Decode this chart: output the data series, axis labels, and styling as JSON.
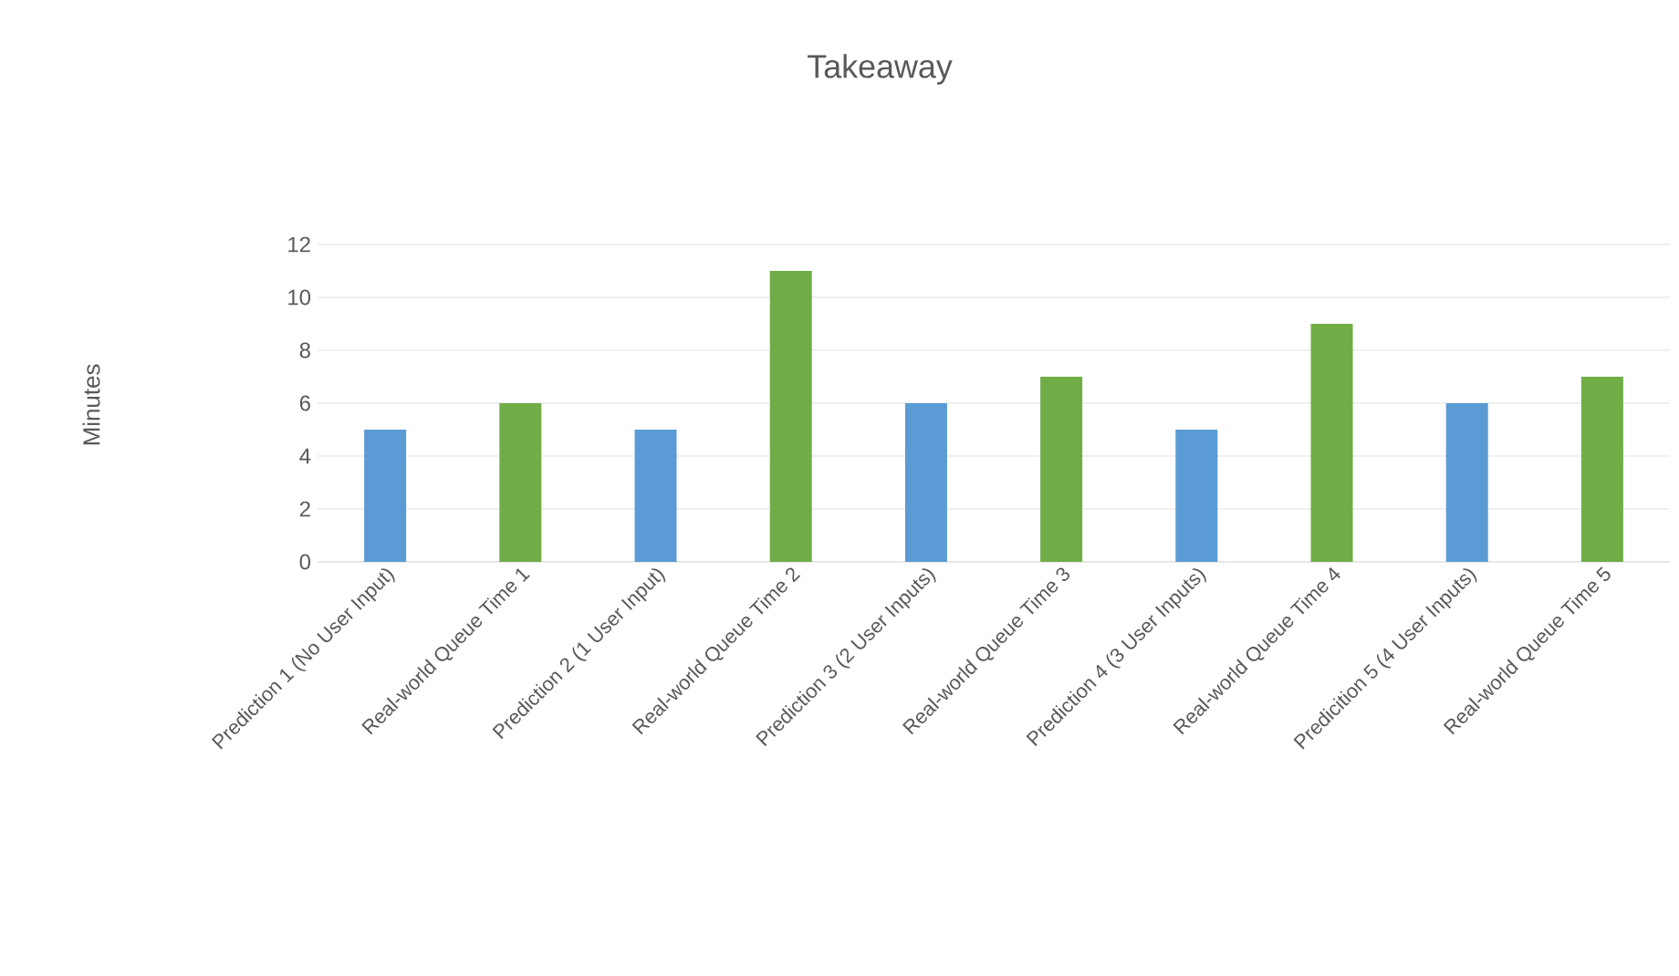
{
  "chart_data": {
    "type": "bar",
    "title": "Takeaway",
    "ylabel": "Minutes",
    "categories": [
      "Prediction 1 (No User Input)",
      "Real-world Queue Time 1",
      "Prediction 2 (1 User Input)",
      "Real-world Queue Time 2",
      "Prediction 3 (2 User Inputs)",
      "Real-world Queue Time 3",
      "Prediction 4 (3 User Inputs)",
      "Real-world Queue Time 4",
      "Predicition 5 (4 User Inputs)",
      "Real-world Queue Time 5"
    ],
    "values": [
      5,
      6,
      5,
      11,
      6,
      7,
      5,
      9,
      6,
      7
    ],
    "colors": [
      "#5b9bd5",
      "#70ad47",
      "#5b9bd5",
      "#70ad47",
      "#5b9bd5",
      "#70ad47",
      "#5b9bd5",
      "#70ad47",
      "#5b9bd5",
      "#70ad47"
    ],
    "ylim": [
      0,
      12
    ],
    "yticks": [
      0,
      2,
      4,
      6,
      8,
      10,
      12
    ],
    "grid": "y"
  }
}
